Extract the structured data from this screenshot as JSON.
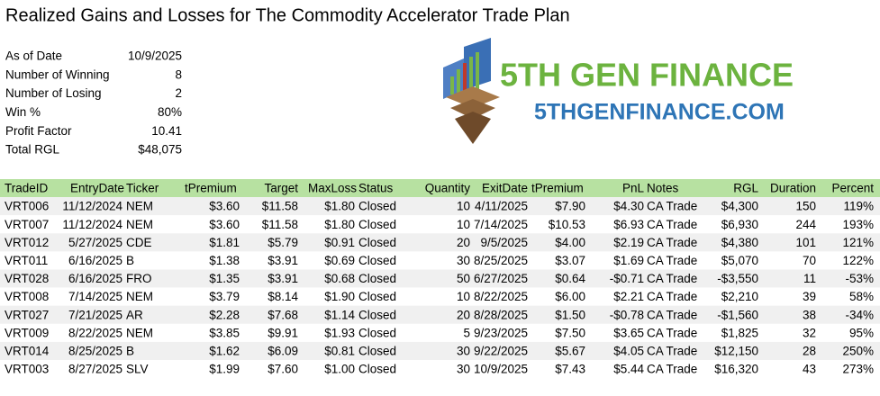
{
  "title": "Realized Gains and Losses for The Commodity Accelerator Trade Plan",
  "summary": [
    [
      "As of Date",
      "10/9/2025"
    ],
    [
      "Number of Winning",
      "8"
    ],
    [
      "Number of Losing",
      "2"
    ],
    [
      "Win %",
      "80%"
    ],
    [
      "Profit Factor",
      "10.41"
    ],
    [
      "Total RGL",
      "$48,075"
    ]
  ],
  "logo": {
    "name": "5TH GEN FINANCE",
    "url": "5THGENFINANCE.COM"
  },
  "table": {
    "headers": [
      "TradeID",
      "EntryDate",
      "Ticker",
      "tPremium",
      "Target",
      "MaxLoss",
      "Status",
      "Quantity",
      "ExitDate",
      "tPremium",
      "PnL",
      "Notes",
      "RGL",
      "Duration",
      "Percent"
    ],
    "rows": [
      [
        "VRT006",
        "11/12/2024",
        "NEM",
        "$3.60",
        "$11.58",
        "$1.80",
        "Closed",
        "10",
        "4/11/2025",
        "$7.90",
        "$4.30",
        "CA Trade",
        "$4,300",
        "150",
        "119%"
      ],
      [
        "VRT007",
        "11/12/2024",
        "NEM",
        "$3.60",
        "$11.58",
        "$1.80",
        "Closed",
        "10",
        "7/14/2025",
        "$10.53",
        "$6.93",
        "CA Trade",
        "$6,930",
        "244",
        "193%"
      ],
      [
        "VRT012",
        "5/27/2025",
        "CDE",
        "$1.81",
        "$5.79",
        "$0.91",
        "Closed",
        "20",
        "9/5/2025",
        "$4.00",
        "$2.19",
        "CA Trade",
        "$4,380",
        "101",
        "121%"
      ],
      [
        "VRT011",
        "6/16/2025",
        "B",
        "$1.38",
        "$3.91",
        "$0.69",
        "Closed",
        "30",
        "8/25/2025",
        "$3.07",
        "$1.69",
        "CA Trade",
        "$5,070",
        "70",
        "122%"
      ],
      [
        "VRT028",
        "6/16/2025",
        "FRO",
        "$1.35",
        "$3.91",
        "$0.68",
        "Closed",
        "50",
        "6/27/2025",
        "$0.64",
        "-$0.71",
        "CA Trade",
        "-$3,550",
        "11",
        "-53%"
      ],
      [
        "VRT008",
        "7/14/2025",
        "NEM",
        "$3.79",
        "$8.14",
        "$1.90",
        "Closed",
        "10",
        "8/22/2025",
        "$6.00",
        "$2.21",
        "CA Trade",
        "$2,210",
        "39",
        "58%"
      ],
      [
        "VRT027",
        "7/21/2025",
        "AR",
        "$2.28",
        "$7.68",
        "$1.14",
        "Closed",
        "20",
        "8/28/2025",
        "$1.50",
        "-$0.78",
        "CA Trade",
        "-$1,560",
        "38",
        "-34%"
      ],
      [
        "VRT009",
        "8/22/2025",
        "NEM",
        "$3.85",
        "$9.91",
        "$1.93",
        "Closed",
        "5",
        "9/23/2025",
        "$7.50",
        "$3.65",
        "CA Trade",
        "$1,825",
        "32",
        "95%"
      ],
      [
        "VRT014",
        "8/25/2025",
        "B",
        "$1.62",
        "$6.09",
        "$0.81",
        "Closed",
        "30",
        "9/22/2025",
        "$5.67",
        "$4.05",
        "CA Trade",
        "$12,150",
        "28",
        "250%"
      ],
      [
        "VRT003",
        "8/27/2025",
        "SLV",
        "$1.99",
        "$7.60",
        "$1.00",
        "Closed",
        "30",
        "10/9/2025",
        "$7.43",
        "$5.44",
        "CA Trade",
        "$16,320",
        "43",
        "273%"
      ]
    ]
  }
}
